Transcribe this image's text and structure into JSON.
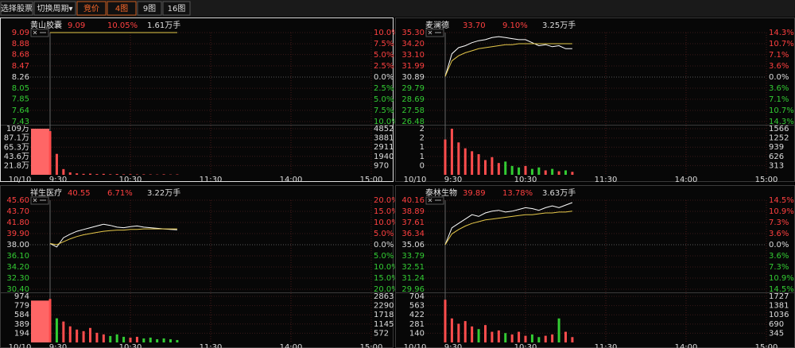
{
  "toolbar": {
    "buttons": [
      {
        "label": "选择股票",
        "active": false
      },
      {
        "label": "切换周期▾",
        "active": false
      },
      {
        "label": "竞价",
        "active": true
      },
      {
        "label": "4图",
        "active": true
      },
      {
        "label": "9图",
        "active": false
      },
      {
        "label": "16图",
        "active": false
      }
    ]
  },
  "chart_data": [
    {
      "type": "line",
      "name": "黄山胶囊",
      "last": "9.09",
      "change": "10.05%",
      "volume_text": "1.61万手",
      "date": "10/10",
      "selected": true,
      "x": [
        "9:30",
        "9:35",
        "9:40",
        "9:45",
        "9:50",
        "9:55",
        "10:00",
        "10:05",
        "10:10",
        "10:15",
        "10:20",
        "10:25",
        "10:30",
        "10:35",
        "10:40",
        "10:45",
        "10:50",
        "10:55",
        "11:00",
        "11:05"
      ],
      "xlim": [
        "9:30",
        "15:00"
      ],
      "xticks": [
        "9:30",
        "10:30",
        "11:30",
        "14:00",
        "15:00"
      ],
      "series": [
        {
          "color": "#ffffff",
          "values": [
            9.09,
            9.09,
            9.09,
            9.09,
            9.09,
            9.09,
            9.09,
            9.09,
            9.09,
            9.09,
            9.09,
            9.09,
            9.09,
            9.09,
            9.09,
            9.09,
            9.09,
            9.09,
            9.09,
            9.09
          ]
        },
        {
          "color": "#e6c84a",
          "values": [
            9.09,
            9.09,
            9.09,
            9.09,
            9.09,
            9.09,
            9.09,
            9.09,
            9.09,
            9.09,
            9.09,
            9.09,
            9.09,
            9.09,
            9.09,
            9.09,
            9.09,
            9.09,
            9.09,
            9.09
          ]
        }
      ],
      "ylim": [
        7.43,
        9.09
      ],
      "yticks": [
        9.09,
        8.88,
        8.68,
        8.47,
        8.26,
        8.05,
        7.85,
        7.64,
        7.43
      ],
      "y2lim": [
        -10,
        10
      ],
      "y2ticks": [
        {
          "value": 10,
          "label": "10.0%"
        },
        {
          "value": 7.5,
          "label": "7.5%"
        },
        {
          "value": 5,
          "label": "5.0%"
        },
        {
          "value": 2.5,
          "label": "2.5%"
        },
        {
          "value": 0,
          "label": "0.0%"
        },
        {
          "value": -2.5,
          "label": "2.5%"
        },
        {
          "value": -5,
          "label": "5.0%"
        },
        {
          "value": -7.5,
          "label": "7.5%"
        },
        {
          "value": -10,
          "label": "10.0%"
        }
      ],
      "volume": [
        4600,
        2200,
        600,
        250,
        150,
        100,
        120,
        80,
        100,
        60,
        80,
        50,
        60,
        40,
        50,
        40,
        30,
        50,
        30,
        40
      ],
      "auction_volume": 4852,
      "vol_ylim": [
        0,
        4852
      ],
      "vol_yticks": [
        4852,
        3881,
        2911,
        1940,
        970
      ],
      "vol2_ylim": [
        0,
        1090000
      ],
      "vol2_yticks": [
        {
          "value": 1090000,
          "label": "109万"
        },
        {
          "value": 871000,
          "label": "87.1万"
        },
        {
          "value": 653000,
          "label": "65.3万"
        },
        {
          "value": 436000,
          "label": "43.6万"
        },
        {
          "value": 218000,
          "label": "21.8万"
        }
      ],
      "up_color": "#ff4d4d",
      "down_color": "#33cc33"
    },
    {
      "type": "line",
      "name": "麦澜德",
      "last": "33.70",
      "change": "9.10%",
      "volume_text": "3.25万手",
      "date": "10/10",
      "selected": false,
      "x": [
        "9:30",
        "9:35",
        "9:40",
        "9:45",
        "9:50",
        "9:55",
        "10:00",
        "10:05",
        "10:10",
        "10:15",
        "10:20",
        "10:25",
        "10:30",
        "10:35",
        "10:40",
        "10:45",
        "10:50",
        "10:55",
        "11:00",
        "11:05"
      ],
      "xlim": [
        "9:30",
        "15:00"
      ],
      "xticks": [
        "9:30",
        "10:30",
        "11:30",
        "14:00",
        "15:00"
      ],
      "series": [
        {
          "color": "#ffffff",
          "values": [
            30.95,
            33.2,
            33.8,
            34.0,
            34.3,
            34.5,
            34.6,
            34.8,
            34.9,
            34.8,
            34.7,
            34.6,
            34.6,
            34.3,
            34.0,
            34.1,
            33.9,
            34.0,
            33.7,
            33.7
          ]
        },
        {
          "color": "#e6c84a",
          "values": [
            30.95,
            32.5,
            33.0,
            33.3,
            33.5,
            33.7,
            33.8,
            33.9,
            34.0,
            34.1,
            34.1,
            34.2,
            34.2,
            34.2,
            34.2,
            34.2,
            34.2,
            34.2,
            34.2,
            34.2
          ]
        }
      ],
      "ylim": [
        26.48,
        35.3
      ],
      "yticks": [
        {
          "value": 35.3,
          "label": "35.30"
        },
        {
          "value": 34.2,
          "label": "34.20"
        },
        {
          "value": 33.1,
          "label": "33.10"
        },
        31.99,
        30.89,
        29.79,
        28.69,
        27.58,
        26.48
      ],
      "y2lim": [
        -14.3,
        14.3
      ],
      "y2ticks": [
        {
          "value": 14.3,
          "label": "14.3%"
        },
        {
          "value": 10.7,
          "label": "10.7%"
        },
        {
          "value": 7.1,
          "label": "7.1%"
        },
        {
          "value": 3.6,
          "label": "3.6%"
        },
        {
          "value": 0,
          "label": "0.0%"
        },
        {
          "value": -3.6,
          "label": "3.6%"
        },
        {
          "value": -7.1,
          "label": "7.1%"
        },
        {
          "value": -10.7,
          "label": "10.7%"
        },
        {
          "value": -14.3,
          "label": "14.3%"
        }
      ],
      "volume": [
        1200,
        1566,
        1100,
        900,
        800,
        700,
        500,
        600,
        400,
        450,
        300,
        250,
        300,
        200,
        250,
        150,
        200,
        120,
        150,
        100
      ],
      "vol_ylim": [
        0,
        1566
      ],
      "vol_yticks": [
        1566,
        1252,
        939,
        626,
        313
      ],
      "vol2_ylim": [
        0,
        2
      ],
      "vol2_yticks": [
        2,
        {
          "value": 1.6,
          "label": "2"
        },
        {
          "value": 1.2,
          "label": "1"
        },
        {
          "value": 0.8,
          "label": "1"
        },
        {
          "value": 0.4,
          "label": "0"
        }
      ],
      "up_color": "#ff4d4d",
      "down_color": "#33cc33"
    },
    {
      "type": "line",
      "name": "祥生医疗",
      "last": "40.55",
      "change": "6.71%",
      "volume_text": "3.22万手",
      "date": "10/10",
      "selected": false,
      "x": [
        "9:30",
        "9:35",
        "9:40",
        "9:45",
        "9:50",
        "9:55",
        "10:00",
        "10:05",
        "10:10",
        "10:15",
        "10:20",
        "10:25",
        "10:30",
        "10:35",
        "10:40",
        "10:45",
        "10:50",
        "10:55",
        "11:00",
        "11:05"
      ],
      "xlim": [
        "9:30",
        "15:00"
      ],
      "xticks": [
        "9:30",
        "10:30",
        "11:30",
        "14:00",
        "15:00"
      ],
      "series": [
        {
          "color": "#ffffff",
          "values": [
            38.2,
            37.6,
            39.2,
            39.8,
            40.3,
            40.6,
            40.9,
            41.2,
            41.5,
            41.3,
            41.0,
            40.9,
            41.1,
            41.2,
            41.0,
            40.9,
            40.8,
            40.7,
            40.6,
            40.55
          ]
        },
        {
          "color": "#e6c84a",
          "values": [
            38.2,
            38.0,
            38.5,
            39.0,
            39.4,
            39.7,
            39.9,
            40.1,
            40.3,
            40.4,
            40.5,
            40.5,
            40.6,
            40.6,
            40.7,
            40.7,
            40.7,
            40.7,
            40.7,
            40.7
          ]
        }
      ],
      "ylim": [
        30.4,
        45.6
      ],
      "yticks": [
        {
          "value": 45.6,
          "label": "45.60"
        },
        {
          "value": 43.7,
          "label": "43.70"
        },
        {
          "value": 41.8,
          "label": "41.80"
        },
        {
          "value": 39.9,
          "label": "39.90"
        },
        {
          "value": 38,
          "label": "38.00"
        },
        {
          "value": 36.1,
          "label": "36.10"
        },
        {
          "value": 34.2,
          "label": "34.20"
        },
        {
          "value": 32.3,
          "label": "32.30"
        },
        {
          "value": 30.4,
          "label": "30.40"
        }
      ],
      "y2lim": [
        -20,
        20
      ],
      "y2ticks": [
        {
          "value": 20,
          "label": "20.0%"
        },
        {
          "value": 15,
          "label": "15.0%"
        },
        {
          "value": 10,
          "label": "10.0%"
        },
        {
          "value": 5,
          "label": "5.0%"
        },
        {
          "value": 0,
          "label": "0.0%"
        },
        {
          "value": -5,
          "label": "5.0%"
        },
        {
          "value": -10,
          "label": "10.0%"
        },
        {
          "value": -15,
          "label": "15.0%"
        },
        {
          "value": -20,
          "label": "20.0%"
        }
      ],
      "volume": [
        2700,
        1500,
        1300,
        1000,
        800,
        700,
        900,
        600,
        500,
        400,
        500,
        350,
        300,
        350,
        250,
        300,
        200,
        250,
        200,
        150
      ],
      "auction_volume": 2600,
      "vol_ylim": [
        0,
        2863
      ],
      "vol_yticks": [
        2863,
        2290,
        1718,
        1145,
        572
      ],
      "vol2_ylim": [
        0,
        974
      ],
      "vol2_yticks": [
        974,
        779,
        584,
        389,
        194
      ],
      "up_color": "#ff4d4d",
      "down_color": "#33cc33"
    },
    {
      "type": "line",
      "name": "泰林生物",
      "last": "39.89",
      "change": "13.78%",
      "volume_text": "3.63万手",
      "date": "10/10",
      "selected": false,
      "x": [
        "9:30",
        "9:35",
        "9:40",
        "9:45",
        "9:50",
        "9:55",
        "10:00",
        "10:05",
        "10:10",
        "10:15",
        "10:20",
        "10:25",
        "10:30",
        "10:35",
        "10:40",
        "10:45",
        "10:50",
        "10:55",
        "11:00",
        "11:05"
      ],
      "xlim": [
        "9:30",
        "15:00"
      ],
      "xticks": [
        "9:30",
        "10:30",
        "11:30",
        "14:00",
        "15:00"
      ],
      "series": [
        {
          "color": "#ffffff",
          "values": [
            35.06,
            37.0,
            37.5,
            38.0,
            38.5,
            38.3,
            38.7,
            38.9,
            39.0,
            38.8,
            38.9,
            39.1,
            39.3,
            39.2,
            39.0,
            39.3,
            39.5,
            39.3,
            39.6,
            39.89
          ]
        },
        {
          "color": "#e6c84a",
          "values": [
            35.06,
            36.3,
            36.8,
            37.2,
            37.5,
            37.7,
            37.9,
            38.0,
            38.1,
            38.2,
            38.3,
            38.4,
            38.5,
            38.5,
            38.6,
            38.7,
            38.7,
            38.8,
            38.8,
            38.9
          ]
        }
      ],
      "ylim": [
        29.96,
        40.16
      ],
      "yticks": [
        40.16,
        38.89,
        37.61,
        36.34,
        35.06,
        33.79,
        32.51,
        31.24,
        29.96
      ],
      "y2lim": [
        -14.5,
        14.5
      ],
      "y2ticks": [
        {
          "value": 14.5,
          "label": "14.5%"
        },
        {
          "value": 10.9,
          "label": "10.9%"
        },
        {
          "value": 7.3,
          "label": "7.3%"
        },
        {
          "value": 3.6,
          "label": "3.6%"
        },
        {
          "value": 0,
          "label": "0.0%"
        },
        {
          "value": -3.6,
          "label": "3.6%"
        },
        {
          "value": -7.3,
          "label": "7.3%"
        },
        {
          "value": -10.9,
          "label": "10.9%"
        },
        {
          "value": -14.5,
          "label": "14.5%"
        }
      ],
      "volume": [
        1600,
        900,
        700,
        800,
        600,
        500,
        650,
        400,
        450,
        350,
        300,
        400,
        250,
        300,
        200,
        250,
        300,
        900,
        400,
        200
      ],
      "vol_ylim": [
        0,
        1727
      ],
      "vol_yticks": [
        1727,
        1381,
        1036,
        690,
        345
      ],
      "vol2_ylim": [
        0,
        704
      ],
      "vol2_yticks": [
        704,
        563,
        422,
        281,
        140
      ],
      "up_color": "#ff4d4d",
      "down_color": "#33cc33"
    }
  ]
}
